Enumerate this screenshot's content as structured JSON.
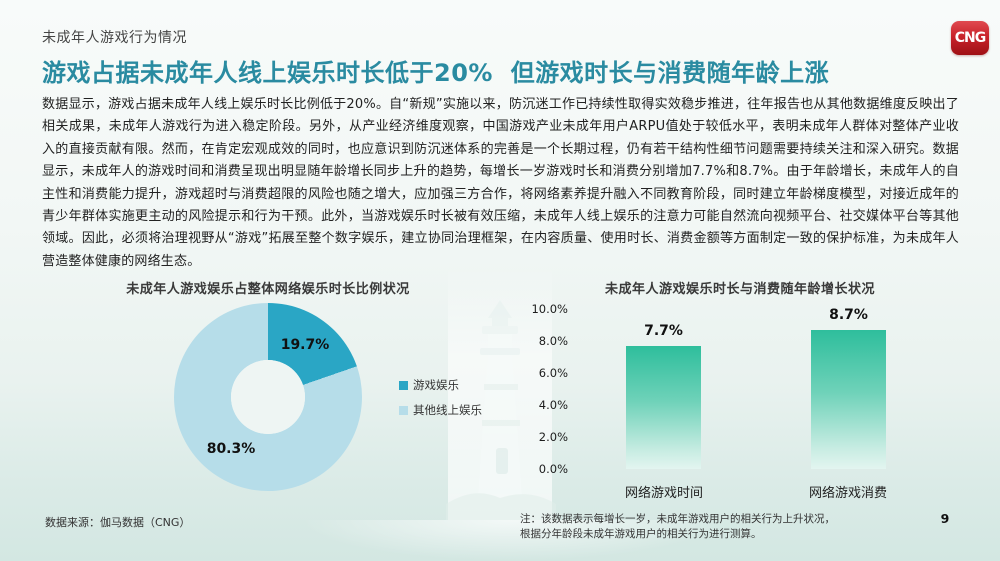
{
  "page": {
    "kicker": "未成年人游戏行为情况",
    "title": "游戏占据未成年人线上娱乐时长低于20%  但游戏时长与消费随年龄上涨",
    "body": "数据显示，游戏占据未成年人线上娱乐时长比例低于20%。自“新规”实施以来，防沉迷工作已持续性取得实效稳步推进，往年报告也从其他数据维度反映出了相关成果，未成年人游戏行为进入稳定阶段。另外，从产业经济维度观察，中国游戏产业未成年用户ARPU值处于较低水平，表明未成年人群体对整体产业收入的直接贡献有限。然而，在肯定宏观成效的同时，也应意识到防沉迷体系的完善是一个长期过程，仍有若干结构性细节问题需要持续关注和深入研究。数据显示，未成年人的游戏时间和消费呈现出明显随年龄增长同步上升的趋势，每增长一岁游戏时长和消费分别增加7.7%和8.7%。由于年龄增长，未成年人的自主性和消费能力提升，游戏超时与消费超限的风险也随之增大，应加强三方合作，将网络素养提升融入不同教育阶段，同时建立年龄梯度模型，对接近成年的青少年群体实施更主动的风险提示和行为干预。此外，当游戏娱乐时长被有效压缩，未成年人线上娱乐的注意力可能自然流向视频平台、社交媒体平台等其他领域。因此，必须将治理视野从“游戏”拓展至整个数字娱乐，建立协同治理框架，在内容质量、使用时长、消费金额等方面制定一致的保护标准，为未成年人营造整体健康的网络生态。",
    "source": "数据来源：伽马数据（CNG）",
    "note_line1": "注：该数据表示每增长一岁，未成年游戏用户的相关行为上升状况，",
    "note_line2": "根据分年龄段未成年游戏用户的相关行为进行测算。",
    "page_number": "9",
    "logo_text": "CNG"
  },
  "colors": {
    "title_teal": "#2a8ba1",
    "donut_game": "#2aa6c5",
    "donut_other": "#b6dde9",
    "bar_top": "#2ebe9c",
    "bar_bottom": "#e3f5f0",
    "logo_red": "#c9242b"
  },
  "chart_data": [
    {
      "type": "pie",
      "donut": true,
      "title": "未成年人游戏娱乐占整体网络娱乐时长比例状况",
      "labels": [
        "游戏娱乐",
        "其他线上娱乐"
      ],
      "values": [
        19.7,
        80.3
      ],
      "value_labels": [
        "19.7%",
        "80.3%"
      ],
      "colors": [
        "#2aa6c5",
        "#b6dde9"
      ],
      "legend_position": "right",
      "start_angle_deg": 0,
      "direction": "clockwise-from-top"
    },
    {
      "type": "bar",
      "title": "未成年人游戏娱乐时长与消费随年龄增长状况",
      "categories": [
        "网络游戏时间",
        "网络游戏消费"
      ],
      "values": [
        7.7,
        8.7
      ],
      "value_labels": [
        "7.7%",
        "8.7%"
      ],
      "xlabel": "",
      "ylabel": "",
      "ylim": [
        0,
        10
      ],
      "ytick_labels": [
        "10.0%",
        "8.0%",
        "6.0%",
        "4.0%",
        "2.0%",
        "0.0%"
      ],
      "grid": false,
      "bar_gradient": [
        "#2ebe9c",
        "#e3f5f0"
      ]
    }
  ]
}
